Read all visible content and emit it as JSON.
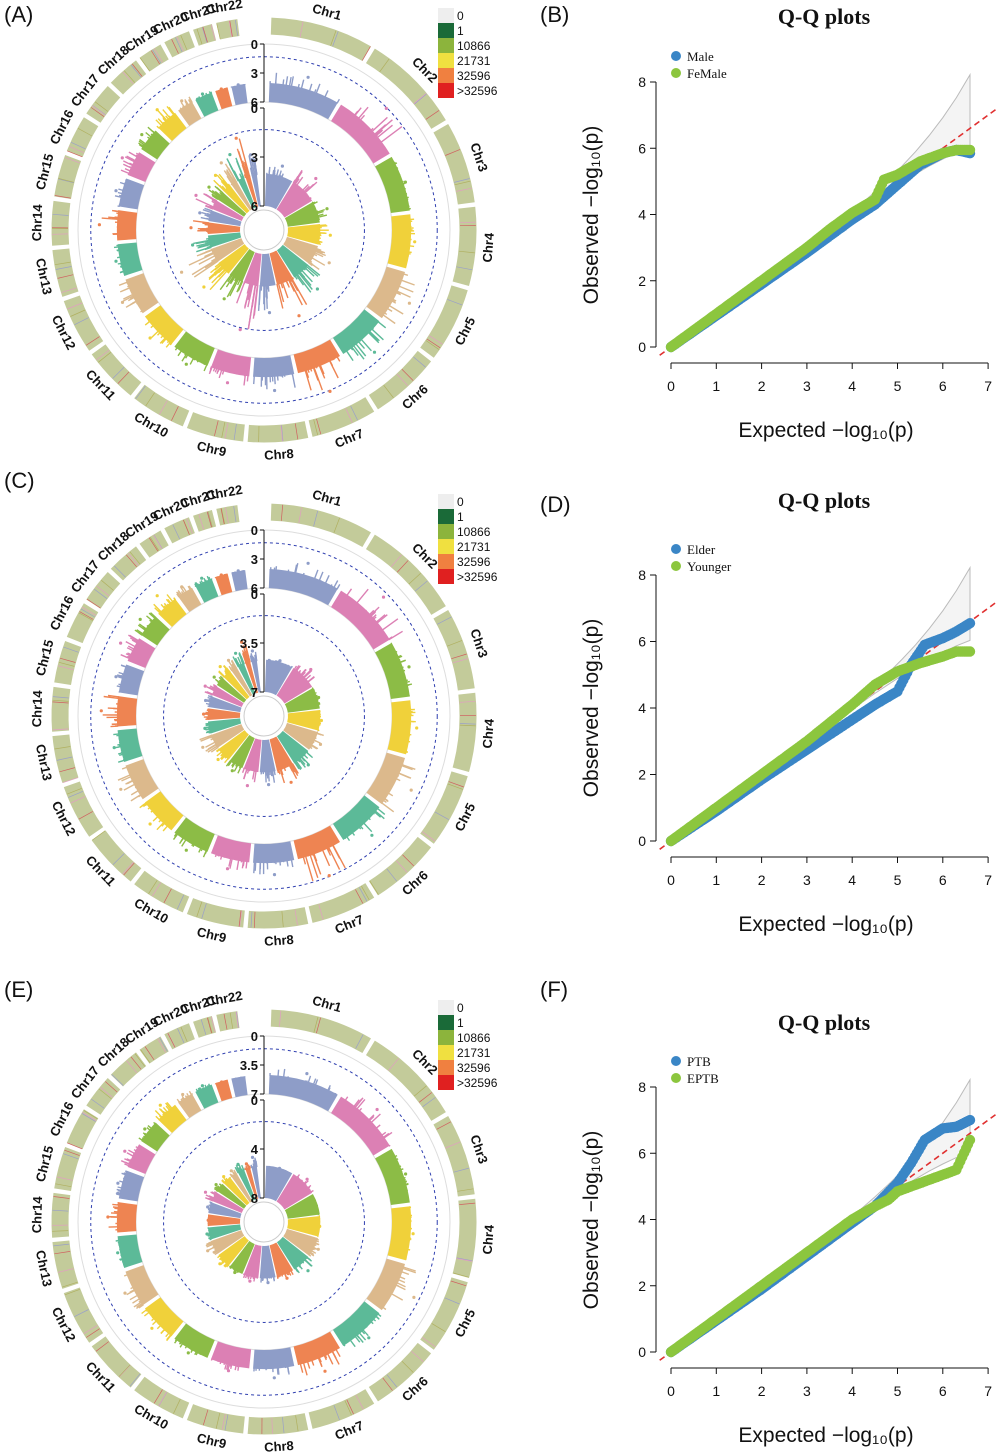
{
  "figure": {
    "panels": [
      {
        "id": "A",
        "label": "(A)"
      },
      {
        "id": "B",
        "label": "(B)"
      },
      {
        "id": "C",
        "label": "(C)"
      },
      {
        "id": "D",
        "label": "(D)"
      },
      {
        "id": "E",
        "label": "(E)"
      },
      {
        "id": "F",
        "label": "(F)"
      }
    ]
  },
  "colors": {
    "chromosomes": [
      "#8e9dc8",
      "#dc80b4",
      "#8cbc46",
      "#f0d13a",
      "#dcb98c",
      "#5cba98",
      "#ee8452",
      "#8e9dc8",
      "#dc80b4",
      "#8cbc46",
      "#f0d13a",
      "#dcb98c",
      "#5cba98",
      "#ee8452",
      "#8e9dc8",
      "#dc80b4",
      "#8cbc46",
      "#f0d13a",
      "#dcb98c",
      "#5cba98",
      "#ee8452",
      "#8e9dc8"
    ],
    "male": "#3a86c6",
    "female": "#8cc63e",
    "reference_line": "#e03030",
    "threshold_line": "#3040b0"
  },
  "chart_data": [
    {
      "panel": "A",
      "type": "scatter",
      "subtype": "circular-manhattan",
      "chromosomes": [
        "Chr1",
        "Chr2",
        "Chr3",
        "Chr4",
        "Chr5",
        "Chr6",
        "Chr7",
        "Chr8",
        "Chr9",
        "Chr10",
        "Chr11",
        "Chr12",
        "Chr13",
        "Chr14",
        "Chr15",
        "Chr16",
        "Chr17",
        "Chr18",
        "Chr19",
        "Chr20",
        "Chr21",
        "Chr22"
      ],
      "density_legend": {
        "values": [
          "0",
          "1",
          "10866",
          "21731",
          "32596",
          ">32596"
        ],
        "colors": [
          "#eeeeee",
          "#1a6a38",
          "#8cb43c",
          "#f0e040",
          "#f08040",
          "#e02020"
        ]
      },
      "outer_track": {
        "axis_ticks": [
          "0",
          "3",
          "6"
        ],
        "peaks": [
          3.2,
          4.6,
          2.2,
          2.4,
          3.6,
          3.8,
          4.8,
          3.4,
          3.0,
          2.8,
          3.0,
          3.2,
          2.4,
          3.8,
          2.6,
          3.2,
          2.8,
          3.4,
          2.6,
          2.2,
          2.0,
          2.0
        ]
      },
      "inner_track": {
        "axis_ticks": [
          "0",
          "3",
          "6"
        ],
        "peaks": [
          2.6,
          3.0,
          2.6,
          2.6,
          3.0,
          3.4,
          4.2,
          3.6,
          4.8,
          3.4,
          3.6,
          4.2,
          3.0,
          3.0,
          2.6,
          3.2,
          2.8,
          3.0,
          3.4,
          3.6,
          4.4,
          3.2
        ]
      }
    },
    {
      "panel": "B",
      "type": "scatter",
      "subtype": "qq-plot",
      "title": "Q-Q plots",
      "xlabel": "Expected  −log₁₀(p)",
      "ylabel": "Observed  −log₁₀(p)",
      "xlim": [
        0,
        7
      ],
      "ylim": [
        0,
        8
      ],
      "xticks": [
        "0",
        "1",
        "2",
        "3",
        "4",
        "5",
        "6",
        "7"
      ],
      "yticks": [
        "0",
        "2",
        "4",
        "6",
        "8"
      ],
      "series": [
        {
          "name": "Male",
          "x": [
            0,
            1,
            2,
            3,
            3.5,
            4,
            4.5,
            5,
            5.5,
            6,
            6.3,
            6.6
          ],
          "y": [
            0,
            0.95,
            1.9,
            2.85,
            3.35,
            3.85,
            4.3,
            4.9,
            5.5,
            5.85,
            5.95,
            5.85
          ]
        },
        {
          "name": "FeMale",
          "x": [
            0,
            1,
            2,
            3,
            3.5,
            4,
            4.5,
            4.7,
            5,
            5.5,
            6,
            6.3,
            6.6
          ],
          "y": [
            0,
            1.0,
            2.0,
            3.0,
            3.55,
            4.05,
            4.45,
            5.05,
            5.2,
            5.6,
            5.85,
            5.95,
            5.95
          ]
        }
      ]
    },
    {
      "panel": "C",
      "type": "scatter",
      "subtype": "circular-manhattan",
      "chromosomes": [
        "Chr1",
        "Chr2",
        "Chr3",
        "Chr4",
        "Chr5",
        "Chr6",
        "Chr7",
        "Chr8",
        "Chr9",
        "Chr10",
        "Chr11",
        "Chr12",
        "Chr13",
        "Chr14",
        "Chr15",
        "Chr16",
        "Chr17",
        "Chr18",
        "Chr19",
        "Chr20",
        "Chr21",
        "Chr22"
      ],
      "density_legend": {
        "values": [
          "0",
          "1",
          "10866",
          "21731",
          "32596",
          ">32596"
        ],
        "colors": [
          "#eeeeee",
          "#1a6a38",
          "#8cb43c",
          "#f0e040",
          "#f08040",
          "#e02020"
        ]
      },
      "outer_track": {
        "axis_ticks": [
          "0",
          "3",
          "6"
        ],
        "peaks": [
          3.2,
          4.2,
          2.6,
          2.6,
          3.8,
          3.4,
          4.6,
          3.2,
          3.0,
          2.8,
          3.0,
          3.4,
          2.6,
          3.6,
          2.6,
          3.4,
          3.0,
          3.4,
          2.6,
          2.4,
          2.0,
          2.0
        ]
      },
      "inner_track": {
        "axis_ticks": [
          "0",
          "3.5",
          "7"
        ],
        "peaks": [
          2.4,
          3.0,
          2.4,
          2.4,
          2.8,
          3.0,
          3.4,
          3.2,
          3.4,
          2.8,
          2.8,
          3.2,
          2.6,
          2.6,
          2.6,
          3.0,
          2.8,
          3.0,
          3.0,
          3.2,
          3.8,
          3.0
        ]
      }
    },
    {
      "panel": "D",
      "type": "scatter",
      "subtype": "qq-plot",
      "title": "Q-Q plots",
      "xlabel": "Expected  −log₁₀(p)",
      "ylabel": "Observed  −log₁₀(p)",
      "xlim": [
        0,
        7
      ],
      "ylim": [
        0,
        8
      ],
      "xticks": [
        "0",
        "1",
        "2",
        "3",
        "4",
        "5",
        "6",
        "7"
      ],
      "yticks": [
        "0",
        "2",
        "4",
        "6",
        "8"
      ],
      "series": [
        {
          "name": "Elder",
          "x": [
            0,
            1,
            2,
            3,
            3.5,
            4,
            4.5,
            5,
            5.3,
            5.6,
            6,
            6.3,
            6.6
          ],
          "y": [
            0,
            0.9,
            1.85,
            2.75,
            3.2,
            3.65,
            4.1,
            4.5,
            5.3,
            5.9,
            6.1,
            6.3,
            6.55
          ]
        },
        {
          "name": "Younger",
          "x": [
            0,
            1,
            2,
            3,
            3.5,
            4,
            4.5,
            5,
            5.5,
            6,
            6.3,
            6.6
          ],
          "y": [
            0,
            1.0,
            2.0,
            3.0,
            3.55,
            4.1,
            4.7,
            5.1,
            5.35,
            5.55,
            5.7,
            5.7
          ]
        }
      ]
    },
    {
      "panel": "E",
      "type": "scatter",
      "subtype": "circular-manhattan",
      "chromosomes": [
        "Chr1",
        "Chr2",
        "Chr3",
        "Chr4",
        "Chr5",
        "Chr6",
        "Chr7",
        "Chr8",
        "Chr9",
        "Chr10",
        "Chr11",
        "Chr12",
        "Chr13",
        "Chr14",
        "Chr15",
        "Chr16",
        "Chr17",
        "Chr18",
        "Chr19",
        "Chr20",
        "Chr21",
        "Chr22"
      ],
      "density_legend": {
        "values": [
          "0",
          "1",
          "10866",
          "21731",
          "32596",
          ">32596"
        ],
        "colors": [
          "#eeeeee",
          "#1a6a38",
          "#8cb43c",
          "#f0e040",
          "#f08040",
          "#e02020"
        ]
      },
      "outer_track": {
        "axis_ticks": [
          "0",
          "3.5",
          "7"
        ],
        "peaks": [
          3.2,
          3.8,
          2.6,
          2.6,
          4.8,
          3.4,
          4.0,
          3.4,
          3.0,
          2.8,
          3.2,
          3.4,
          2.6,
          3.4,
          2.8,
          3.4,
          2.8,
          3.4,
          2.8,
          2.6,
          2.2,
          2.0
        ]
      },
      "inner_track": {
        "axis_ticks": [
          "0",
          "4",
          "8"
        ],
        "peaks": [
          2.6,
          3.0,
          2.4,
          2.6,
          3.0,
          3.4,
          3.0,
          3.0,
          3.0,
          2.8,
          3.0,
          3.2,
          2.8,
          2.6,
          2.8,
          3.4,
          3.0,
          3.0,
          3.0,
          3.2,
          3.0,
          3.4
        ]
      }
    },
    {
      "panel": "F",
      "type": "scatter",
      "subtype": "qq-plot",
      "title": "Q-Q plots",
      "xlabel": "Expected  −log₁₀(p)",
      "ylabel": "Observed  −log₁₀(p)",
      "xlim": [
        0,
        7
      ],
      "ylim": [
        0,
        8
      ],
      "xticks": [
        "0",
        "1",
        "2",
        "3",
        "4",
        "5",
        "6",
        "7"
      ],
      "yticks": [
        "0",
        "2",
        "4",
        "6",
        "8"
      ],
      "series": [
        {
          "name": "PTB",
          "x": [
            0,
            1,
            2,
            3,
            3.5,
            4,
            4.5,
            5,
            5.3,
            5.6,
            6,
            6.3,
            6.6
          ],
          "y": [
            0,
            0.95,
            1.9,
            2.9,
            3.4,
            3.9,
            4.4,
            5.1,
            5.7,
            6.4,
            6.75,
            6.8,
            7.0
          ]
        },
        {
          "name": "EPTB",
          "x": [
            0,
            1,
            2,
            3,
            3.5,
            4,
            4.5,
            4.8,
            5,
            5.5,
            6,
            6.3,
            6.6
          ],
          "y": [
            0,
            1.0,
            2.0,
            3.0,
            3.5,
            4.0,
            4.4,
            4.6,
            4.85,
            5.1,
            5.35,
            5.5,
            6.4
          ]
        }
      ]
    }
  ]
}
